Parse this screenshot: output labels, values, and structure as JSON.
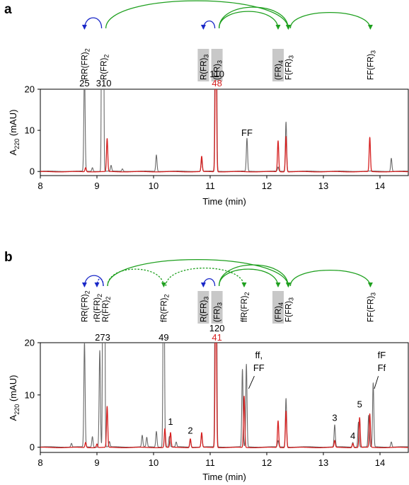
{
  "panels": [
    {
      "letter": "a",
      "ylabel": "A",
      "ylabel_sub": "220",
      "ylabel_unit": " (mAU)",
      "xlabel": "Time (min)",
      "compounds": [
        {
          "id": "RR(FR)2",
          "base": "RR(FR)",
          "sub": "2",
          "time": 8.78,
          "shaded": false
        },
        {
          "id": "R(FR)2",
          "base": "R(FR)",
          "sub": "2",
          "time": 9.12,
          "shaded": false
        },
        {
          "id": "R(FR)3",
          "base": "R(FR)",
          "sub": "3",
          "time": 10.88,
          "shaded": true
        },
        {
          "id": "(FR)3",
          "base": "(FR)",
          "sub": "3",
          "time": 11.12,
          "shaded": true
        },
        {
          "id": "(FR)4",
          "base": "(FR)",
          "sub": "4",
          "time": 12.2,
          "shaded": true
        },
        {
          "id": "F(FR)3",
          "base": "F(FR)",
          "sub": "3",
          "time": 12.38,
          "shaded": false
        },
        {
          "id": "FF(FR)3",
          "base": "FF(FR)",
          "sub": "3",
          "time": 13.83,
          "shaded": false
        }
      ],
      "arrows": [
        {
          "from": 9.12,
          "to": 8.78,
          "color": "blue",
          "dashed": false,
          "rise": 20
        },
        {
          "from": 9.12,
          "to": 12.38,
          "color": "green",
          "dashed": false,
          "rise": 52
        },
        {
          "from": 11.12,
          "to": 10.88,
          "color": "blue",
          "dashed": false,
          "rise": 14
        },
        {
          "from": 11.12,
          "to": 12.2,
          "color": "green",
          "dashed": false,
          "rise": 32
        },
        {
          "from": 11.12,
          "to": 12.38,
          "color": "green",
          "dashed": false,
          "rise": 40
        },
        {
          "from": 12.38,
          "to": 13.83,
          "color": "green",
          "dashed": false,
          "rise": 30
        }
      ],
      "top_labels": [
        {
          "text": "25",
          "time": 8.78,
          "color": "#000000",
          "row": 0
        },
        {
          "text": "310",
          "time": 9.12,
          "color": "#000000",
          "row": 0
        },
        {
          "text": "110",
          "time": 11.12,
          "color": "#000000",
          "row": 1
        },
        {
          "text": "48",
          "time": 11.12,
          "color": "#d62020",
          "row": 0
        }
      ],
      "annotations": [
        {
          "text": "FF",
          "time": 11.65,
          "y": 8.6
        }
      ]
    },
    {
      "letter": "b",
      "ylabel": "A",
      "ylabel_sub": "220",
      "ylabel_unit": " (mAU)",
      "xlabel": "Time (min)",
      "compounds": [
        {
          "id": "RR(FR)2",
          "base": "RR(FR)",
          "sub": "2",
          "time": 8.78,
          "shaded": false
        },
        {
          "id": "rR(FR)2",
          "base": "rR(FR)",
          "sub": "2",
          "time": 9.0,
          "shaded": false
        },
        {
          "id": "R(FR)2",
          "base": "R(FR)",
          "sub": "2",
          "time": 9.15,
          "shaded": false
        },
        {
          "id": "fR(FR)2",
          "base": "fR(FR)",
          "sub": "2",
          "time": 10.18,
          "shaded": false
        },
        {
          "id": "R(FR)3",
          "base": "R(FR)",
          "sub": "3",
          "time": 10.88,
          "shaded": true
        },
        {
          "id": "(FR)3",
          "base": "(FR)",
          "sub": "3",
          "time": 11.12,
          "shaded": true
        },
        {
          "id": "ffR(FR)2",
          "base": "ffR(FR)",
          "sub": "2",
          "time": 11.6,
          "shaded": false
        },
        {
          "id": "(FR)4",
          "base": "(FR)",
          "sub": "4",
          "time": 12.2,
          "shaded": true
        },
        {
          "id": "F(FR)3",
          "base": "F(FR)",
          "sub": "3",
          "time": 12.38,
          "shaded": false
        },
        {
          "id": "FF(FR)3",
          "base": "FF(FR)",
          "sub": "3",
          "time": 13.83,
          "shaded": false
        }
      ],
      "arrows": [
        {
          "from": 9.15,
          "to": 8.78,
          "color": "blue",
          "dashed": false,
          "rise": 20
        },
        {
          "from": 9.15,
          "to": 9.0,
          "color": "blue",
          "dashed": true,
          "rise": 14
        },
        {
          "from": 9.15,
          "to": 10.18,
          "color": "green",
          "dashed": true,
          "rise": 32
        },
        {
          "from": 9.15,
          "to": 12.38,
          "color": "green",
          "dashed": false,
          "rise": 50
        },
        {
          "from": 10.18,
          "to": 11.6,
          "color": "green",
          "dashed": true,
          "rise": 34
        },
        {
          "from": 11.12,
          "to": 10.88,
          "color": "blue",
          "dashed": false,
          "rise": 14
        },
        {
          "from": 11.12,
          "to": 12.2,
          "color": "green",
          "dashed": false,
          "rise": 32
        },
        {
          "from": 11.12,
          "to": 12.38,
          "color": "green",
          "dashed": false,
          "rise": 40
        },
        {
          "from": 12.38,
          "to": 13.83,
          "color": "green",
          "dashed": false,
          "rise": 30
        }
      ],
      "top_labels": [
        {
          "text": "273",
          "time": 9.1,
          "color": "#000000",
          "row": 0
        },
        {
          "text": "49",
          "time": 10.18,
          "color": "#000000",
          "row": 0
        },
        {
          "text": "120",
          "time": 11.12,
          "color": "#000000",
          "row": 1
        },
        {
          "text": "41",
          "time": 11.12,
          "color": "#d62020",
          "row": 0
        }
      ],
      "annotations": [
        {
          "text": "1",
          "time": 10.3,
          "y": 4.3
        },
        {
          "text": "2",
          "time": 10.65,
          "y": 2.6
        },
        {
          "text": "3",
          "time": 13.2,
          "y": 5.0
        },
        {
          "text": "4",
          "time": 13.52,
          "y": 1.6
        },
        {
          "text": "5",
          "time": 13.64,
          "y": 7.6
        },
        {
          "text": "ff,",
          "time": 11.86,
          "y": 17.0
        },
        {
          "text": "FF",
          "time": 11.86,
          "y": 14.6
        },
        {
          "text": "fF",
          "time": 14.03,
          "y": 17.0
        },
        {
          "text": "Ff",
          "time": 14.03,
          "y": 14.6
        }
      ]
    }
  ],
  "colors": {
    "grey_trace": "#6a6a6a",
    "red_trace": "#d62020",
    "blue_arrow": "#1a28c8",
    "green_arrow": "#1fa01f",
    "shade": "#c8c8c8"
  },
  "chart_data": [
    {
      "type": "line",
      "title": "",
      "xlabel": "Time (min)",
      "ylabel": "A220 (mAU)",
      "xlim": [
        8,
        14.5
      ],
      "ylim": [
        -1,
        20
      ],
      "xticks": [
        8,
        9,
        10,
        11,
        12,
        13,
        14
      ],
      "yticks": [
        0,
        10,
        20
      ],
      "grid": false,
      "series": [
        {
          "color": "#6a6a6a",
          "peaks": [
            {
              "time": 8.78,
              "height": 25
            },
            {
              "time": 8.92,
              "height": 0.9
            },
            {
              "time": 9.1,
              "height": 310
            },
            {
              "time": 9.25,
              "height": 1.4
            },
            {
              "time": 9.45,
              "height": 0.6
            },
            {
              "time": 10.05,
              "height": 4.0
            },
            {
              "time": 10.85,
              "height": 2.8
            },
            {
              "time": 11.1,
              "height": 110
            },
            {
              "time": 11.65,
              "height": 8.0
            },
            {
              "time": 12.2,
              "height": 1.0
            },
            {
              "time": 12.34,
              "height": 12.0
            },
            {
              "time": 14.2,
              "height": 3.2
            }
          ]
        },
        {
          "color": "#d62020",
          "peaks": [
            {
              "time": 8.8,
              "height": 1.0
            },
            {
              "time": 9.18,
              "height": 8.0
            },
            {
              "time": 10.85,
              "height": 3.7
            },
            {
              "time": 11.1,
              "height": 48
            },
            {
              "time": 12.2,
              "height": 7.5
            },
            {
              "time": 12.34,
              "height": 8.6
            },
            {
              "time": 13.82,
              "height": 8.3
            }
          ]
        }
      ]
    },
    {
      "type": "line",
      "title": "",
      "xlabel": "Time (min)",
      "ylabel": "A220 (mAU)",
      "xlim": [
        8,
        14.5
      ],
      "ylim": [
        -1,
        20
      ],
      "xticks": [
        8,
        9,
        10,
        11,
        12,
        13,
        14
      ],
      "yticks": [
        0,
        10,
        20
      ],
      "grid": false,
      "series": [
        {
          "color": "#6a6a6a",
          "peaks": [
            {
              "time": 8.55,
              "height": 0.7
            },
            {
              "time": 8.78,
              "height": 20
            },
            {
              "time": 8.92,
              "height": 2.0
            },
            {
              "time": 9.05,
              "height": 18.5
            },
            {
              "time": 9.12,
              "height": 273
            },
            {
              "time": 9.22,
              "height": 1.0
            },
            {
              "time": 9.8,
              "height": 2.2
            },
            {
              "time": 9.88,
              "height": 1.8
            },
            {
              "time": 10.05,
              "height": 3.0
            },
            {
              "time": 10.18,
              "height": 49
            },
            {
              "time": 10.28,
              "height": 2.0
            },
            {
              "time": 10.4,
              "height": 0.9
            },
            {
              "time": 10.65,
              "height": 1.3
            },
            {
              "time": 10.85,
              "height": 2.5
            },
            {
              "time": 11.1,
              "height": 120
            },
            {
              "time": 11.57,
              "height": 14.8
            },
            {
              "time": 11.64,
              "height": 15.8
            },
            {
              "time": 12.2,
              "height": 1.2
            },
            {
              "time": 12.34,
              "height": 9.3
            },
            {
              "time": 13.2,
              "height": 4.2
            },
            {
              "time": 13.52,
              "height": 0.9
            },
            {
              "time": 13.62,
              "height": 4.8
            },
            {
              "time": 13.8,
              "height": 6.0
            },
            {
              "time": 13.88,
              "height": 12.2
            },
            {
              "time": 14.2,
              "height": 1.0
            }
          ]
        },
        {
          "color": "#d62020",
          "peaks": [
            {
              "time": 8.8,
              "height": 1.0
            },
            {
              "time": 9.0,
              "height": 0.7
            },
            {
              "time": 9.18,
              "height": 7.8
            },
            {
              "time": 10.2,
              "height": 3.6
            },
            {
              "time": 10.3,
              "height": 2.8
            },
            {
              "time": 10.65,
              "height": 1.7
            },
            {
              "time": 10.85,
              "height": 2.8
            },
            {
              "time": 11.1,
              "height": 41
            },
            {
              "time": 11.6,
              "height": 9.8
            },
            {
              "time": 12.2,
              "height": 5.1
            },
            {
              "time": 12.34,
              "height": 7.0
            },
            {
              "time": 13.2,
              "height": 1.3
            },
            {
              "time": 13.52,
              "height": 0.8
            },
            {
              "time": 13.64,
              "height": 5.7
            },
            {
              "time": 13.82,
              "height": 6.4
            }
          ]
        }
      ]
    }
  ]
}
